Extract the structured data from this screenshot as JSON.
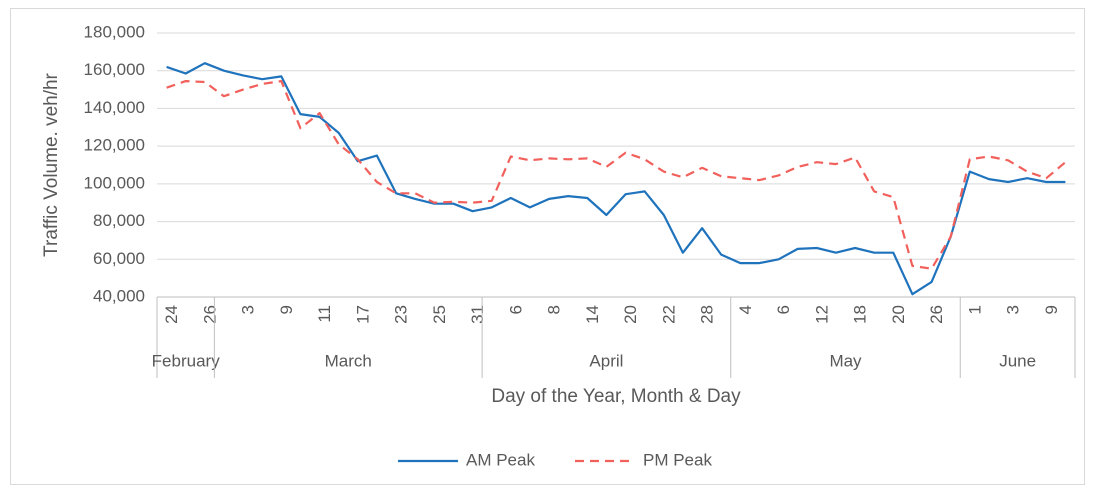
{
  "chart_data": {
    "type": "line",
    "y_label": "Traffic Volume. veh/hr",
    "x_label": "Day of the Year, Month & Day",
    "categories": [
      "24",
      null,
      "26",
      null,
      "3",
      null,
      "9",
      null,
      "11",
      null,
      "17",
      null,
      "23",
      null,
      "25",
      null,
      "31",
      null,
      "6",
      null,
      "8",
      null,
      "14",
      null,
      "20",
      null,
      "22",
      null,
      "28",
      null,
      "4",
      null,
      "6",
      null,
      "12",
      null,
      "18",
      null,
      "20",
      null,
      "26",
      null,
      "1",
      null,
      "3",
      null,
      "9",
      null
    ],
    "month_groups": [
      {
        "label": "February",
        "span": 3
      },
      {
        "label": "March",
        "span": 14
      },
      {
        "label": "April",
        "span": 13
      },
      {
        "label": "May",
        "span": 12
      },
      {
        "label": "June",
        "span": 6
      }
    ],
    "series": [
      {
        "name": "AM Peak",
        "color": "#1f73bd",
        "dashed": false,
        "values": [
          162000,
          158500,
          164000,
          160000,
          157500,
          155500,
          157000,
          137000,
          135500,
          127000,
          112000,
          115000,
          95000,
          92000,
          89500,
          89500,
          85500,
          87500,
          92500,
          87500,
          92000,
          93500,
          92500,
          83500,
          94500,
          96000,
          83500,
          63500,
          76500,
          62500,
          58000,
          58000,
          60000,
          65500,
          66000,
          63500,
          66000,
          63500,
          63500,
          41500,
          48000,
          72000,
          106500,
          102500,
          101000,
          103000,
          101000,
          101000
        ]
      },
      {
        "name": "PM Peak",
        "color": "#f2605c",
        "dashed": true,
        "values": [
          151000,
          154500,
          154000,
          146500,
          150000,
          153000,
          154500,
          129500,
          137500,
          121000,
          113000,
          101000,
          95000,
          95000,
          90000,
          90500,
          90000,
          91000,
          114500,
          112500,
          113500,
          113000,
          113500,
          109000,
          116500,
          113000,
          106500,
          103500,
          108500,
          104000,
          103000,
          102000,
          104500,
          109000,
          111500,
          110500,
          114000,
          96000,
          93000,
          56500,
          55000,
          72000,
          113000,
          114500,
          112500,
          106500,
          103000,
          111500
        ]
      }
    ],
    "ylim": [
      40000,
      180000
    ],
    "yticks": [
      {
        "value": 40000,
        "label": "40,000"
      },
      {
        "value": 60000,
        "label": "60,000"
      },
      {
        "value": 80000,
        "label": "80,000"
      },
      {
        "value": 100000,
        "label": "100,000"
      },
      {
        "value": 120000,
        "label": "120,000"
      },
      {
        "value": 140000,
        "label": "140,000"
      },
      {
        "value": 160000,
        "label": "160,000"
      },
      {
        "value": 180000,
        "label": "180,000"
      }
    ],
    "grid": true,
    "legend": "bottom"
  }
}
